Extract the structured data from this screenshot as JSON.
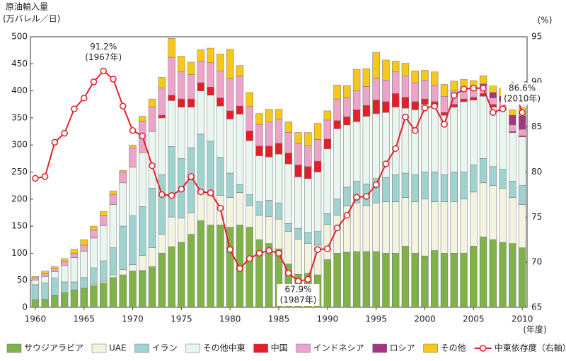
{
  "chart_data": {
    "type": "bar",
    "stacked": true,
    "y_label": [
      "原油輸入量",
      "(万バレル／日)"
    ],
    "y2_label": "(%)",
    "x_label": "(年度)",
    "x": [
      1960,
      1961,
      1962,
      1963,
      1964,
      1965,
      1966,
      1967,
      1968,
      1969,
      1970,
      1971,
      1972,
      1973,
      1974,
      1975,
      1976,
      1977,
      1978,
      1979,
      1980,
      1981,
      1982,
      1983,
      1984,
      1985,
      1986,
      1987,
      1988,
      1989,
      1990,
      1991,
      1992,
      1993,
      1994,
      1995,
      1996,
      1997,
      1998,
      1999,
      2000,
      2001,
      2002,
      2003,
      2004,
      2005,
      2006,
      2007,
      2008,
      2009,
      2010
    ],
    "xlim": [
      1959.5,
      2010.5
    ],
    "xticks": [
      1960,
      1965,
      1970,
      1975,
      1980,
      1985,
      1990,
      1995,
      2000,
      2005,
      2010
    ],
    "ylim": [
      0,
      500
    ],
    "yticks": [
      0,
      50,
      100,
      150,
      200,
      250,
      300,
      350,
      400,
      450,
      500
    ],
    "y2lim": [
      65,
      95
    ],
    "y2ticks": [
      65,
      70,
      75,
      80,
      85,
      90,
      95
    ],
    "grid": false,
    "series": [
      {
        "name": "サウジアラビア",
        "color": "#80b24a",
        "values": [
          14,
          15,
          22,
          27,
          32,
          35,
          40,
          45,
          55,
          60,
          67,
          68,
          75,
          100,
          112,
          120,
          135,
          160,
          152,
          152,
          148,
          152,
          148,
          125,
          118,
          108,
          80,
          61,
          63,
          60,
          88,
          100,
          102,
          103,
          103,
          103,
          100,
          100,
          113,
          100,
          95,
          105,
          100,
          100,
          100,
          113,
          130,
          125,
          120,
          118,
          110
        ]
      },
      {
        "name": "UAE",
        "color": "#f2f4e0",
        "values": [
          0,
          0,
          0,
          0,
          0,
          2,
          3,
          3,
          5,
          10,
          12,
          28,
          35,
          35,
          55,
          45,
          40,
          50,
          55,
          55,
          55,
          60,
          40,
          45,
          50,
          55,
          60,
          65,
          55,
          55,
          65,
          70,
          85,
          90,
          85,
          90,
          95,
          95,
          90,
          95,
          105,
          90,
          95,
          95,
          100,
          100,
          100,
          100,
          100,
          85,
          80
        ]
      },
      {
        "name": "イラン",
        "color": "#9fd3cf",
        "values": [
          28,
          30,
          32,
          20,
          15,
          18,
          30,
          38,
          50,
          80,
          90,
          90,
          110,
          110,
          130,
          110,
          120,
          110,
          100,
          70,
          45,
          15,
          20,
          25,
          30,
          30,
          15,
          20,
          20,
          25,
          20,
          30,
          35,
          40,
          40,
          45,
          45,
          50,
          45,
          50,
          50,
          55,
          50,
          55,
          50,
          50,
          45,
          35,
          35,
          30,
          35
        ]
      },
      {
        "name": "その他中東",
        "color": "#e9f5ef",
        "values": [
          8,
          12,
          12,
          30,
          45,
          48,
          55,
          65,
          80,
          80,
          90,
          100,
          105,
          105,
          85,
          95,
          75,
          80,
          85,
          95,
          100,
          130,
          100,
          85,
          80,
          90,
          110,
          95,
          100,
          110,
          120,
          130,
          115,
          110,
          125,
          120,
          120,
          125,
          120,
          120,
          125,
          120,
          110,
          120,
          130,
          120,
          115,
          110,
          110,
          90,
          90
        ]
      },
      {
        "name": "中国",
        "color": "#e3202a",
        "values": [
          0,
          0,
          0,
          0,
          0,
          0,
          0,
          0,
          0,
          0,
          0,
          0,
          0,
          5,
          10,
          15,
          15,
          15,
          15,
          15,
          15,
          15,
          18,
          18,
          20,
          20,
          20,
          22,
          22,
          20,
          18,
          15,
          15,
          22,
          20,
          25,
          20,
          25,
          20,
          15,
          10,
          10,
          5,
          5,
          5,
          5,
          5,
          5,
          3,
          2,
          2
        ]
      },
      {
        "name": "インドネシア",
        "color": "#eca4c9",
        "values": [
          4,
          5,
          5,
          8,
          8,
          12,
          15,
          18,
          18,
          20,
          35,
          58,
          45,
          50,
          70,
          50,
          45,
          40,
          45,
          50,
          60,
          55,
          45,
          40,
          45,
          45,
          38,
          40,
          38,
          40,
          35,
          40,
          35,
          35,
          35,
          40,
          40,
          40,
          40,
          35,
          35,
          30,
          30,
          25,
          20,
          20,
          15,
          12,
          12,
          12,
          12
        ]
      },
      {
        "name": "ロシア",
        "color": "#a6347f",
        "values": [
          0,
          0,
          0,
          0,
          0,
          0,
          0,
          0,
          0,
          0,
          0,
          0,
          0,
          0,
          0,
          0,
          0,
          0,
          0,
          0,
          0,
          0,
          0,
          0,
          0,
          0,
          0,
          0,
          0,
          0,
          0,
          0,
          0,
          0,
          0,
          0,
          0,
          0,
          0,
          0,
          0,
          0,
          0,
          0,
          0,
          0,
          3,
          10,
          10,
          18,
          25
        ]
      },
      {
        "name": "その他",
        "color": "#f7c81b",
        "values": [
          3,
          5,
          4,
          5,
          7,
          10,
          7,
          8,
          7,
          3,
          6,
          9,
          15,
          20,
          35,
          29,
          23,
          21,
          27,
          31,
          54,
          20,
          26,
          20,
          23,
          18,
          20,
          20,
          25,
          30,
          17,
          26,
          23,
          40,
          33,
          48,
          37,
          20,
          23,
          22,
          18,
          25,
          22,
          18,
          16,
          11,
          15,
          12,
          15,
          10,
          15
        ]
      },
      {
        "name": "中東依存度（右軸）",
        "color": "#e3202a",
        "axis": "y2",
        "type": "line",
        "values": [
          79.3,
          79.5,
          83.3,
          84.3,
          87,
          88.2,
          90,
          91.2,
          90.3,
          87.3,
          84.6,
          84,
          80.7,
          77.5,
          77.4,
          78.1,
          79.5,
          77.8,
          77.7,
          76,
          71.4,
          69.3,
          70.4,
          71,
          71.3,
          71,
          68.8,
          67.9,
          68.1,
          71.4,
          71.5,
          73.8,
          75.2,
          77.2,
          77.3,
          78.6,
          80.9,
          82.6,
          86.1,
          84.6,
          87.1,
          87.3,
          85.3,
          88.5,
          89.2,
          89.3,
          89.3,
          86.6,
          87,
          89.6,
          86.6
        ]
      }
    ],
    "annotations": [
      {
        "x": 1967,
        "y": 91.2,
        "text": [
          "91.2%",
          "(1967年)"
        ],
        "position": "above"
      },
      {
        "x": 1987,
        "y": 67.9,
        "text": [
          "67.9%",
          "(1987年)"
        ],
        "position": "below"
      },
      {
        "x": 2010,
        "y": 86.6,
        "text": [
          "86.6%",
          "(2010年)"
        ],
        "position": "above"
      }
    ]
  }
}
